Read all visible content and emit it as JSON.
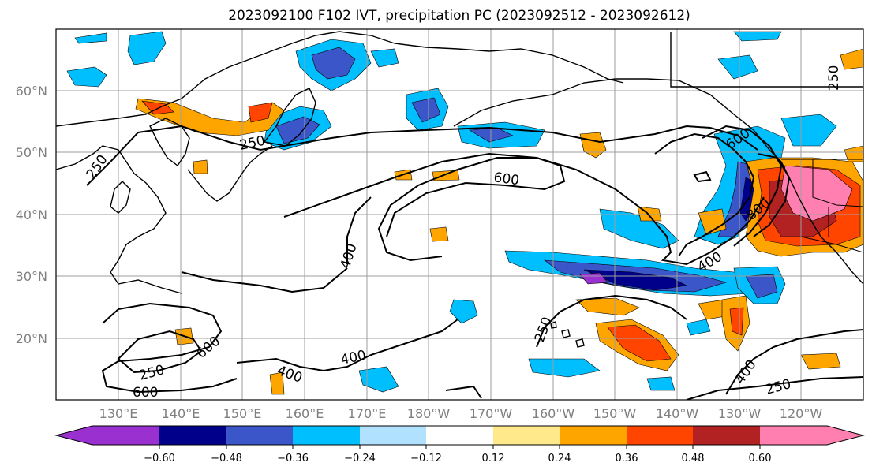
{
  "title": "2023092100 F102 IVT, precipitation PC (2023092512 - 2023092612)",
  "lat_labels": [
    "60°N",
    "50°N",
    "40°N",
    "30°N",
    "20°N"
  ],
  "lon_labels": [
    "130°E",
    "140°E",
    "150°E",
    "160°E",
    "170°E",
    "180°W",
    "170°W",
    "160°W",
    "150°W",
    "140°W",
    "130°W",
    "120°W"
  ],
  "contour_labels": [
    "250",
    "250",
    "600",
    "400",
    "400",
    "800",
    "600",
    "250",
    "600",
    "600",
    "250",
    "400",
    "400",
    "250",
    "400",
    "250"
  ],
  "colorbar": {
    "ticks": [
      "−0.60",
      "−0.48",
      "−0.36",
      "−0.24",
      "−0.12",
      "0.12",
      "0.24",
      "0.36",
      "0.48",
      "0.60"
    ],
    "colors": [
      "#9b30d0",
      "#00008b",
      "#3a56c8",
      "#00bfff",
      "#b0e2ff",
      "#ffffff",
      "#ffe98a",
      "#ffa500",
      "#ff4500",
      "#b22222",
      "#ff80b0"
    ]
  },
  "map_data": {
    "lat_range": [
      10,
      70
    ],
    "lon_range_deg_east": [
      120,
      250
    ],
    "ivt_contour_levels": [
      250,
      400,
      600,
      800
    ],
    "pc_color_levels": [
      -0.6,
      -0.48,
      -0.36,
      -0.24,
      -0.12,
      0.12,
      0.24,
      0.36,
      0.48,
      0.6
    ]
  }
}
